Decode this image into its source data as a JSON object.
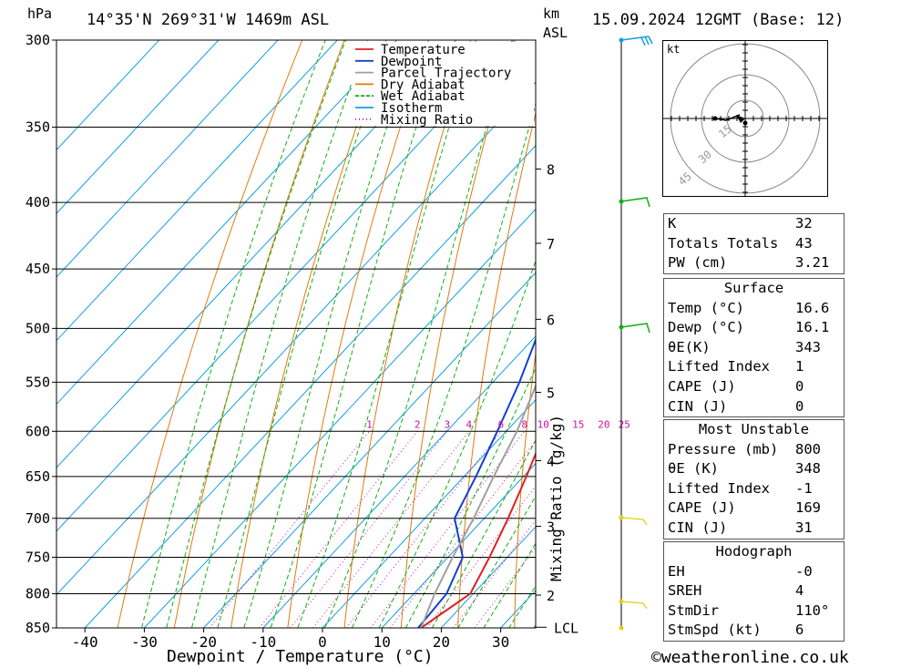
{
  "header": {
    "pressure_unit": "hPa",
    "location": "14°35'N  269°31'W  1469m  ASL",
    "km_unit": "km",
    "asl_unit": "ASL",
    "datetime": "15.09.2024  12GMT  (Base: 12)"
  },
  "chart_data": {
    "type": "skew-t",
    "xlabel": "Dewpoint / Temperature (°C)",
    "ylabel_left": "hPa",
    "mixing_ratio_label": "Mixing Ratio (g/kg)",
    "pressure_ticks": [
      300,
      350,
      400,
      450,
      500,
      550,
      600,
      650,
      700,
      750,
      800,
      850
    ],
    "temperature_ticks": [
      -40,
      -30,
      -20,
      -10,
      0,
      10,
      20,
      30
    ],
    "height_ticks": [
      {
        "label": "8",
        "p": 377
      },
      {
        "label": "7",
        "p": 430
      },
      {
        "label": "6",
        "p": 492
      },
      {
        "label": "5",
        "p": 560
      },
      {
        "label": "4",
        "p": 632
      },
      {
        "label": "3",
        "p": 710
      },
      {
        "label": "2",
        "p": 802
      }
    ],
    "lcl_label": "LCL",
    "lcl_pressure": 849,
    "mixing_ratio_values": [
      "1",
      "2",
      "3",
      "4",
      "6",
      "8",
      "10",
      "15",
      "20",
      "25"
    ],
    "legend": [
      "Temperature",
      "Dewpoint",
      "Parcel Trajectory",
      "Dry Adiabat",
      "Wet Adiabat",
      "Isotherm",
      "Mixing Ratio"
    ],
    "series": [
      {
        "name": "Temperature",
        "color": "#e02020",
        "points": [
          [
            850,
            16.6
          ],
          [
            800,
            19.5
          ],
          [
            750,
            17.0
          ],
          [
            700,
            14.0
          ],
          [
            650,
            10.5
          ],
          [
            600,
            6.5
          ],
          [
            550,
            2.0
          ],
          [
            500,
            -3.5
          ],
          [
            450,
            -9.5
          ],
          [
            400,
            -17.0
          ],
          [
            350,
            -26.0
          ],
          [
            320,
            -32.5
          ],
          [
            300,
            -36.5
          ]
        ]
      },
      {
        "name": "Dewpoint",
        "color": "#1040d0",
        "points": [
          [
            850,
            16.1
          ],
          [
            800,
            15.5
          ],
          [
            750,
            12.5
          ],
          [
            700,
            5.0
          ],
          [
            650,
            2.0
          ],
          [
            600,
            -1.5
          ],
          [
            550,
            -5.5
          ],
          [
            500,
            -10.5
          ],
          [
            450,
            -17.0
          ],
          [
            400,
            -24.5
          ],
          [
            350,
            -35.0
          ],
          [
            320,
            -43.5
          ],
          [
            300,
            -50.0
          ]
        ]
      },
      {
        "name": "Parcel Trajectory",
        "color": "#a0a0a0",
        "points": [
          [
            850,
            16.6
          ],
          [
            800,
            13.5
          ],
          [
            750,
            10.8
          ],
          [
            700,
            8.2
          ],
          [
            650,
            5.0
          ],
          [
            600,
            1.8
          ],
          [
            550,
            -2.5
          ],
          [
            500,
            -7.0
          ],
          [
            450,
            -12.5
          ],
          [
            400,
            -19.5
          ],
          [
            350,
            -28.0
          ],
          [
            320,
            -34.0
          ],
          [
            300,
            -38.5
          ]
        ]
      }
    ]
  },
  "hodograph": {
    "unit": "kt",
    "ring_labels": [
      "15",
      "30",
      "45"
    ]
  },
  "indices": [
    {
      "label": "K",
      "value": "32"
    },
    {
      "label": "Totals Totals",
      "value": "43"
    },
    {
      "label": "PW (cm)",
      "value": "3.21"
    }
  ],
  "surface": {
    "title": "Surface",
    "rows": [
      {
        "label": "Temp (°C)",
        "value": "16.6"
      },
      {
        "label": "Dewp (°C)",
        "value": "16.1"
      },
      {
        "label": "θE(K)",
        "value": "343"
      },
      {
        "label": "Lifted Index",
        "value": "1"
      },
      {
        "label": "CAPE (J)",
        "value": "0"
      },
      {
        "label": "CIN (J)",
        "value": "0"
      }
    ]
  },
  "most_unstable": {
    "title": "Most Unstable",
    "rows": [
      {
        "label": "Pressure (mb)",
        "value": "800"
      },
      {
        "label": "θE (K)",
        "value": "348"
      },
      {
        "label": "Lifted Index",
        "value": "-1"
      },
      {
        "label": "CAPE (J)",
        "value": "169"
      },
      {
        "label": "CIN (J)",
        "value": "31"
      }
    ]
  },
  "hodograph_table": {
    "title": "Hodograph",
    "rows": [
      {
        "label": "EH",
        "value": "-0"
      },
      {
        "label": "SREH",
        "value": "4"
      },
      {
        "label": "StmDir",
        "value": "110°"
      },
      {
        "label": "StmSpd (kt)",
        "value": "6"
      }
    ]
  },
  "footer": {
    "copyright": "©weatheronline.co.uk"
  },
  "colors": {
    "temperature": "#e02020",
    "dewpoint": "#1040d0",
    "parcel": "#a0a0a0",
    "dry_adiabat": "#e07a10",
    "wet_adiabat": "#10b010",
    "isotherm": "#10a0e0",
    "mixing_ratio": "#d010a0"
  }
}
